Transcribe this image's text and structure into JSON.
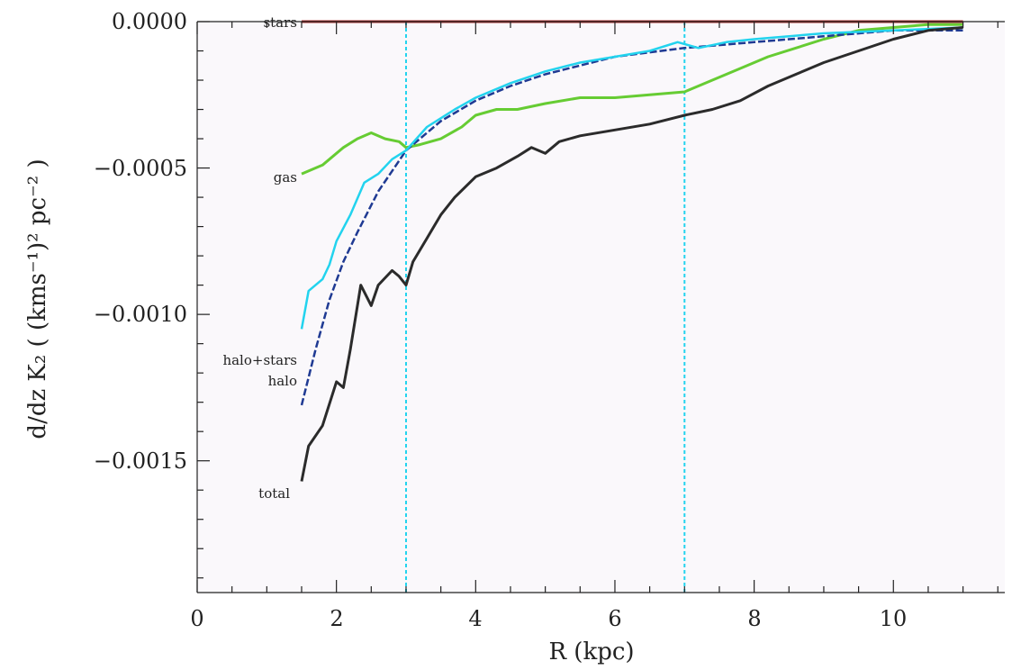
{
  "chart_data": {
    "type": "line",
    "title": "",
    "xlabel": "R (kpc)",
    "ylabel": "d/dz K₂ ( (kms⁻¹)² pc⁻² )",
    "xlim": [
      0,
      11.6
    ],
    "ylim": [
      -0.00195,
      0.0
    ],
    "grid": false,
    "x_ticks": [
      "0",
      "2",
      "4",
      "6",
      "8",
      "10"
    ],
    "y_ticks": [
      "0.0000",
      "−0.0005",
      "−0.0010",
      "−0.0015"
    ],
    "vertical_lines": [
      3,
      7
    ],
    "colors": {
      "stars": "#a52a2a",
      "gas": "#66cc33",
      "halo": "#1f3a93",
      "halo+stars": "#22d3ee",
      "total": "#2b2b2b",
      "vline": "#22d3ee"
    },
    "series": [
      {
        "name": "stars",
        "x": [
          1.5,
          11
        ],
        "y": [
          0.0,
          0.0
        ]
      },
      {
        "name": "gas",
        "x": [
          1.5,
          1.8,
          2.1,
          2.3,
          2.5,
          2.7,
          2.9,
          3.0,
          3.2,
          3.5,
          3.8,
          4.0,
          4.3,
          4.6,
          5.0,
          5.5,
          6.0,
          6.5,
          7.0,
          7.4,
          7.8,
          8.2,
          8.6,
          9.0,
          9.5,
          10.0,
          10.5,
          11.0
        ],
        "y": [
          -0.00052,
          -0.00049,
          -0.00043,
          -0.0004,
          -0.00038,
          -0.0004,
          -0.00041,
          -0.00043,
          -0.00042,
          -0.0004,
          -0.00036,
          -0.00032,
          -0.0003,
          -0.0003,
          -0.00028,
          -0.00026,
          -0.00026,
          -0.00025,
          -0.00024,
          -0.0002,
          -0.00016,
          -0.00012,
          -9e-05,
          -6e-05,
          -3e-05,
          -2e-05,
          -1e-05,
          -1e-05
        ]
      },
      {
        "name": "halo",
        "x": [
          1.5,
          1.7,
          1.9,
          2.1,
          2.3,
          2.6,
          3.0,
          3.5,
          4.0,
          4.5,
          5.0,
          6.0,
          7.0,
          8.0,
          9.0,
          10.0,
          11.0
        ],
        "y": [
          -0.00131,
          -0.00112,
          -0.00095,
          -0.00082,
          -0.00072,
          -0.00058,
          -0.00044,
          -0.00034,
          -0.00027,
          -0.00022,
          -0.00018,
          -0.00012,
          -9e-05,
          -7e-05,
          -5e-05,
          -3e-05,
          -3e-05
        ]
      },
      {
        "name": "halo+stars",
        "x": [
          1.5,
          1.6,
          1.8,
          1.9,
          2.0,
          2.2,
          2.4,
          2.6,
          2.8,
          3.0,
          3.3,
          3.7,
          4.0,
          4.5,
          5.0,
          5.5,
          6.0,
          6.5,
          6.9,
          7.2,
          7.6,
          8.0,
          9.0,
          10.0,
          11.0
        ],
        "y": [
          -0.00105,
          -0.00092,
          -0.00088,
          -0.00083,
          -0.00075,
          -0.00066,
          -0.00055,
          -0.00052,
          -0.00047,
          -0.00044,
          -0.00036,
          -0.0003,
          -0.00026,
          -0.00021,
          -0.00017,
          -0.00014,
          -0.00012,
          -0.0001,
          -7e-05,
          -9e-05,
          -7e-05,
          -6e-05,
          -4e-05,
          -3e-05,
          -2e-05
        ]
      },
      {
        "name": "total",
        "x": [
          1.5,
          1.6,
          1.8,
          2.0,
          2.1,
          2.2,
          2.35,
          2.5,
          2.6,
          2.8,
          2.9,
          3.0,
          3.1,
          3.3,
          3.5,
          3.7,
          4.0,
          4.3,
          4.6,
          4.8,
          5.0,
          5.2,
          5.5,
          6.0,
          6.5,
          7.0,
          7.4,
          7.8,
          8.2,
          8.6,
          9.0,
          9.5,
          10.0,
          10.5,
          11.0
        ],
        "y": [
          -0.00157,
          -0.00145,
          -0.00138,
          -0.00123,
          -0.00125,
          -0.00112,
          -0.0009,
          -0.00097,
          -0.0009,
          -0.00085,
          -0.00087,
          -0.0009,
          -0.00082,
          -0.00074,
          -0.00066,
          -0.0006,
          -0.00053,
          -0.0005,
          -0.00046,
          -0.00043,
          -0.00045,
          -0.00041,
          -0.00039,
          -0.00037,
          -0.00035,
          -0.00032,
          -0.0003,
          -0.00027,
          -0.00022,
          -0.00018,
          -0.00014,
          -0.0001,
          -6e-05,
          -3e-05,
          -2e-05
        ]
      }
    ],
    "series_labels": [
      "stars",
      "gas",
      "halo+stars",
      "halo",
      "total"
    ]
  }
}
